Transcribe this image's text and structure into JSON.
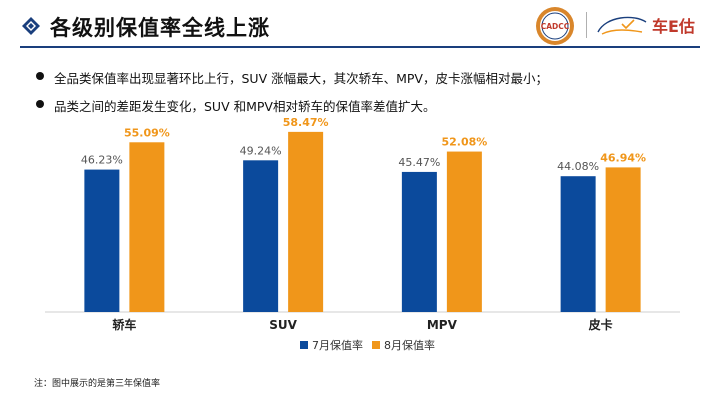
{
  "header": {
    "title": "各级别保值率全线上涨",
    "logo_left_text": "CADCC",
    "logo_right_text": "车E估"
  },
  "bullets": [
    "全品类保值率出现显著环比上行，SUV 涨幅最大，其次轿车、MPV，皮卡涨幅相对最小；",
    "品类之间的差距发生变化，SUV 和MPV相对轿车的保值率差值扩大。"
  ],
  "chart_data": {
    "type": "bar",
    "categories": [
      "轿车",
      "SUV",
      "MPV",
      "皮卡"
    ],
    "series": [
      {
        "name": "7月保值率",
        "values": [
          46.23,
          49.24,
          45.47,
          44.08
        ],
        "labels": [
          "46.23%",
          "49.24%",
          "45.47%",
          "44.08%"
        ],
        "color": "#0b4a9c"
      },
      {
        "name": "8月保值率",
        "values": [
          55.09,
          58.47,
          52.08,
          46.94
        ],
        "labels": [
          "55.09%",
          "58.47%",
          "52.08%",
          "46.94%"
        ],
        "color": "#f0961a"
      }
    ],
    "ylim": [
      0,
      60
    ],
    "grid": false,
    "legend_position": "bottom-center",
    "label_colors": {
      "july": "#555555",
      "august": "#f0961a"
    }
  },
  "footnote": "注：图中展示的是第三年保值率",
  "colors": {
    "accent": "#1a3f7d"
  },
  "icons": {
    "title_marker": "diamond-icon"
  }
}
